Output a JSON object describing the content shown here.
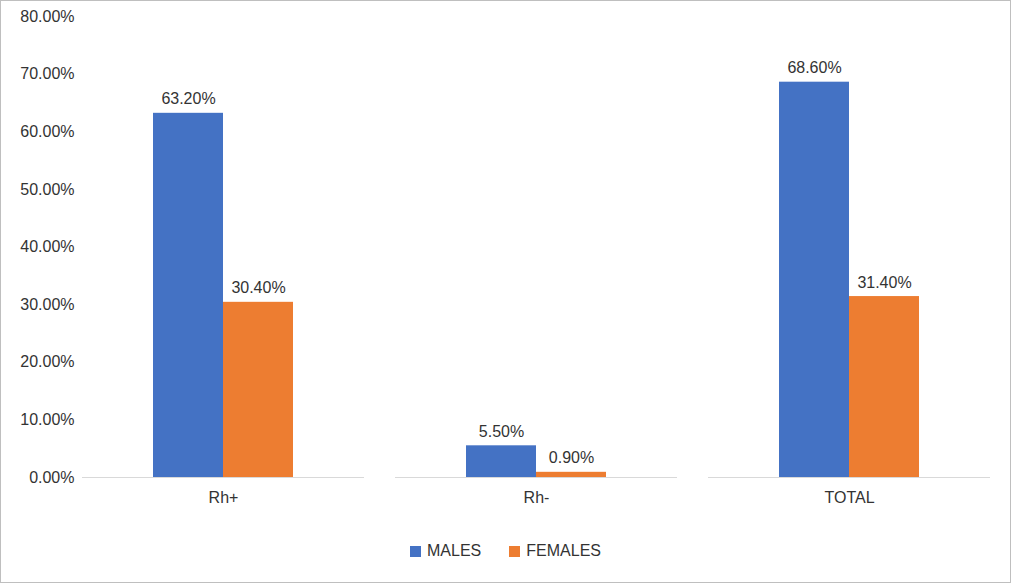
{
  "chart_data": {
    "type": "bar",
    "categories": [
      "Rh+",
      "Rh-",
      "TOTAL"
    ],
    "series": [
      {
        "name": "MALES",
        "color": "#4472c4",
        "values": [
          63.2,
          5.5,
          68.6
        ],
        "value_labels": [
          "63.20%",
          "5.50%",
          "68.60%"
        ]
      },
      {
        "name": "FEMALES",
        "color": "#ed7d31",
        "values": [
          30.4,
          0.9,
          31.4
        ],
        "value_labels": [
          "30.40%",
          "0.90%",
          "31.40%"
        ]
      }
    ],
    "ylim": [
      0,
      80
    ],
    "yticks": [
      {
        "value": 0,
        "label": "0.00%"
      },
      {
        "value": 10,
        "label": "10.00%"
      },
      {
        "value": 20,
        "label": "20.00%"
      },
      {
        "value": 30,
        "label": "30.00%"
      },
      {
        "value": 40,
        "label": "40.00%"
      },
      {
        "value": 50,
        "label": "50.00%"
      },
      {
        "value": 60,
        "label": "60.00%"
      },
      {
        "value": 70,
        "label": "70.00%"
      },
      {
        "value": 80,
        "label": "80.00%"
      }
    ],
    "grid": false,
    "legend": "bottom",
    "data_labels": true
  }
}
